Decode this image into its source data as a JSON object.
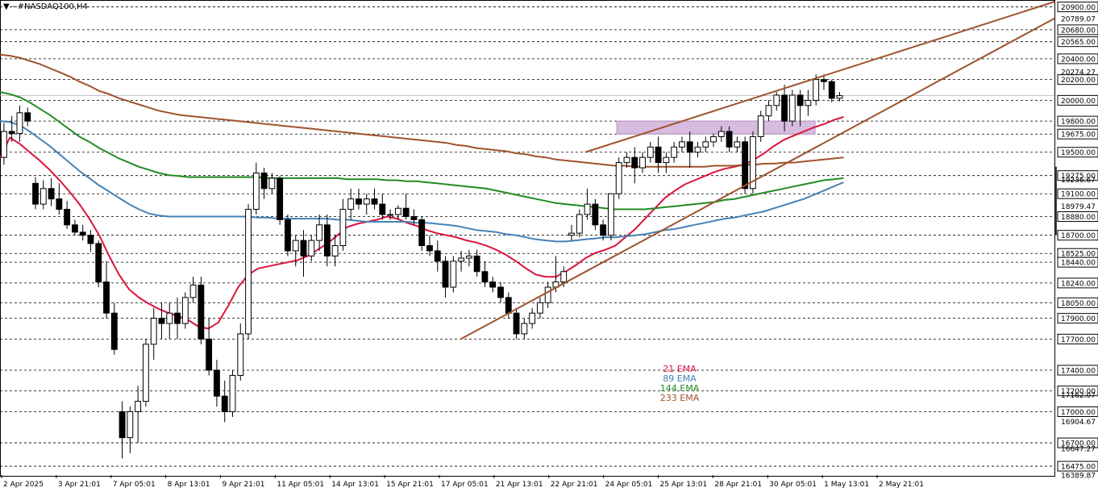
{
  "chart_data": {
    "type": "candlestick",
    "symbol": "▼ - #NASDAQ100,H4",
    "ylim": [
      16389.87,
      20951
    ],
    "level_lines": [
      20900,
      20680,
      20565,
      20400,
      20200,
      20000,
      19800,
      19675,
      19500,
      19275,
      19100,
      18880,
      18700,
      18525,
      18440,
      18240,
      18050,
      17900,
      17700,
      17400,
      17200,
      17000,
      16700,
      16475
    ],
    "price_labels": [
      {
        "label": "20900.00",
        "value": 20900,
        "boxed": true
      },
      {
        "label": "20789.07",
        "value": 20789.07,
        "boxed": false
      },
      {
        "label": "20680.00",
        "value": 20680,
        "boxed": true
      },
      {
        "label": "20565.00",
        "value": 20565,
        "boxed": true
      },
      {
        "label": "20400.00",
        "value": 20400,
        "boxed": true
      },
      {
        "label": "20274.27",
        "value": 20274.27,
        "boxed": false
      },
      {
        "label": "20200.00",
        "value": 20200,
        "boxed": true
      },
      {
        "label": "20000.00",
        "value": 20000,
        "boxed": true
      },
      {
        "label": "19800.00",
        "value": 19800,
        "boxed": true
      },
      {
        "label": "19675.00",
        "value": 19675,
        "boxed": true
      },
      {
        "label": "19500.00",
        "value": 19500,
        "boxed": true
      },
      {
        "label": "19275.00",
        "value": 19275,
        "boxed": true
      },
      {
        "label": "19236.67",
        "value": 19236.67,
        "boxed": false
      },
      {
        "label": "19100.00",
        "value": 19100,
        "boxed": true
      },
      {
        "label": "18979.47",
        "value": 18979.47,
        "boxed": false
      },
      {
        "label": "18880.00",
        "value": 18880,
        "boxed": true
      },
      {
        "label": "18700.00",
        "value": 18700,
        "boxed": true
      },
      {
        "label": "18525.00",
        "value": 18525,
        "boxed": true
      },
      {
        "label": "18440.00",
        "value": 18440,
        "boxed": true
      },
      {
        "label": "18240.00",
        "value": 18240,
        "boxed": true
      },
      {
        "label": "18050.00",
        "value": 18050,
        "boxed": true
      },
      {
        "label": "17900.00",
        "value": 17900,
        "boxed": true
      },
      {
        "label": "17700.00",
        "value": 17700,
        "boxed": true
      },
      {
        "label": "17400.00",
        "value": 17400,
        "boxed": true
      },
      {
        "label": "17200.00",
        "value": 17200,
        "boxed": true
      },
      {
        "label": "17162.07",
        "value": 17162.07,
        "boxed": false
      },
      {
        "label": "17000.00",
        "value": 17000,
        "boxed": true
      },
      {
        "label": "16904.67",
        "value": 16904.67,
        "boxed": false
      },
      {
        "label": "16700.00",
        "value": 16700,
        "boxed": true
      },
      {
        "label": "16647.27",
        "value": 16647.27,
        "boxed": false
      },
      {
        "label": "16475.00",
        "value": 16475,
        "boxed": true
      },
      {
        "label": "16389.87",
        "value": 16389.87,
        "boxed": false
      }
    ],
    "current_price": 20045,
    "x_labels": [
      "2 Apr 2025",
      "3 Apr 21:01",
      "7 Apr 05:01",
      "8 Apr 13:01",
      "9 Apr 21:01",
      "11 Apr 05:01",
      "14 Apr 13:01",
      "15 Apr 21:01",
      "17 Apr 05:01",
      "21 Apr 13:01",
      "22 Apr 21:01",
      "24 Apr 05:01",
      "25 Apr 13:01",
      "28 Apr 21:01",
      "30 Apr 05:01",
      "1 May 13:01",
      "2 May 21:01"
    ],
    "series": [
      {
        "name": "21 EMA",
        "color": "#dc143c",
        "values": [
          19450,
          19640,
          19580,
          19500,
          19420,
          19330,
          19230,
          19120,
          19000,
          18860,
          18700,
          18500,
          18320,
          18180,
          18100,
          18040,
          17990,
          17950,
          17920,
          17880,
          17820,
          17800,
          17860,
          18020,
          18200,
          18320,
          18380,
          18400,
          18420,
          18440,
          18460,
          18500,
          18560,
          18620,
          18700,
          18780,
          18810,
          18830,
          18850,
          18880,
          18860,
          18820,
          18790,
          18750,
          18720,
          18700,
          18680,
          18650,
          18630,
          18600,
          18560,
          18510,
          18450,
          18380,
          18320,
          18300,
          18300,
          18350,
          18410,
          18480,
          18530,
          18560,
          18600,
          18680,
          18760,
          18860,
          18960,
          19060,
          19130,
          19190,
          19230,
          19270,
          19310,
          19340,
          19360,
          19380,
          19430,
          19490,
          19560,
          19620,
          19660,
          19700,
          19740,
          19770,
          19810,
          19840
        ]
      },
      {
        "name": "89 EMA",
        "color": "#4682b4",
        "values": [
          19800,
          19790,
          19760,
          19700,
          19630,
          19560,
          19480,
          19400,
          19320,
          19250,
          19180,
          19120,
          19060,
          19000,
          18950,
          18910,
          18890,
          18880,
          18880,
          18880,
          18880,
          18880,
          18880,
          18880,
          18880,
          18880,
          18870,
          18870,
          18860,
          18860,
          18860,
          18860,
          18860,
          18860,
          18850,
          18850,
          18840,
          18830,
          18830,
          18830,
          18830,
          18830,
          18820,
          18820,
          18810,
          18800,
          18790,
          18770,
          18750,
          18740,
          18730,
          18710,
          18700,
          18680,
          18660,
          18650,
          18640,
          18640,
          18650,
          18660,
          18670,
          18680,
          18680,
          18690,
          18700,
          18710,
          18730,
          18750,
          18760,
          18780,
          18800,
          18820,
          18840,
          18860,
          18870,
          18890,
          18910,
          18930,
          18960,
          18990,
          19020,
          19050,
          19090,
          19130,
          19170,
          19210
        ]
      },
      {
        "name": "144 EMA",
        "color": "#228b22",
        "values": [
          20080,
          20060,
          20030,
          19980,
          19920,
          19860,
          19790,
          19720,
          19650,
          19600,
          19540,
          19490,
          19440,
          19400,
          19360,
          19330,
          19300,
          19280,
          19270,
          19260,
          19260,
          19260,
          19260,
          19260,
          19260,
          19260,
          19260,
          19250,
          19250,
          19250,
          19250,
          19250,
          19250,
          19250,
          19250,
          19240,
          19240,
          19240,
          19240,
          19230,
          19230,
          19220,
          19220,
          19210,
          19200,
          19190,
          19180,
          19170,
          19160,
          19150,
          19130,
          19110,
          19090,
          19070,
          19050,
          19030,
          19010,
          19000,
          18990,
          18980,
          18970,
          18960,
          18950,
          18950,
          18950,
          18950,
          18960,
          18970,
          18980,
          18990,
          19000,
          19010,
          19020,
          19040,
          19050,
          19070,
          19090,
          19110,
          19130,
          19150,
          19170,
          19190,
          19210,
          19230,
          19240,
          19250
        ]
      },
      {
        "name": "233 EMA",
        "color": "#a0522d",
        "values": [
          20440,
          20430,
          20410,
          20380,
          20350,
          20310,
          20270,
          20230,
          20180,
          20140,
          20090,
          20060,
          20020,
          19990,
          19960,
          19930,
          19900,
          19880,
          19860,
          19850,
          19840,
          19830,
          19820,
          19810,
          19800,
          19790,
          19780,
          19770,
          19760,
          19750,
          19740,
          19730,
          19720,
          19710,
          19700,
          19690,
          19680,
          19670,
          19660,
          19650,
          19640,
          19630,
          19620,
          19610,
          19600,
          19590,
          19570,
          19560,
          19540,
          19530,
          19520,
          19510,
          19490,
          19480,
          19460,
          19450,
          19430,
          19420,
          19410,
          19400,
          19390,
          19380,
          19370,
          19370,
          19360,
          19360,
          19360,
          19360,
          19360,
          19360,
          19360,
          19360,
          19370,
          19370,
          19370,
          19380,
          19380,
          19390,
          19390,
          19400,
          19400,
          19410,
          19420,
          19430,
          19440,
          19450
        ]
      }
    ],
    "candles": [
      [
        19450,
        19780,
        19380,
        19700
      ],
      [
        19700,
        19850,
        19600,
        19680
      ],
      [
        19680,
        19950,
        19600,
        19880
      ],
      [
        19880,
        19930,
        19750,
        19800
      ],
      [
        19200,
        19260,
        18950,
        19000
      ],
      [
        19000,
        19230,
        18950,
        19150
      ],
      [
        19150,
        19250,
        18980,
        19050
      ],
      [
        19050,
        19200,
        18900,
        18950
      ],
      [
        18950,
        19030,
        18760,
        18800
      ],
      [
        18800,
        18850,
        18700,
        18730
      ],
      [
        18730,
        18800,
        18650,
        18700
      ],
      [
        18700,
        18750,
        18540,
        18620
      ],
      [
        18620,
        18650,
        18200,
        18250
      ],
      [
        18250,
        18450,
        17900,
        17950
      ],
      [
        17950,
        18050,
        17550,
        17600
      ],
      [
        17000,
        17100,
        16550,
        16750
      ],
      [
        16750,
        17050,
        16600,
        17000
      ],
      [
        17000,
        17250,
        16700,
        17100
      ],
      [
        17100,
        17700,
        17050,
        17650
      ],
      [
        17650,
        18000,
        17500,
        17900
      ],
      [
        17900,
        18050,
        17700,
        17850
      ],
      [
        17850,
        18050,
        17700,
        17950
      ],
      [
        17950,
        18100,
        17700,
        17850
      ],
      [
        17850,
        18150,
        17800,
        18100
      ],
      [
        18100,
        18300,
        18050,
        18220
      ],
      [
        18220,
        18300,
        17650,
        17700
      ],
      [
        17700,
        17900,
        17350,
        17400
      ],
      [
        17400,
        17500,
        17050,
        17150
      ],
      [
        17150,
        17300,
        16900,
        17000
      ],
      [
        17000,
        17400,
        16950,
        17350
      ],
      [
        17350,
        17850,
        17300,
        17750
      ],
      [
        17750,
        19000,
        17700,
        18950
      ],
      [
        18950,
        19400,
        18900,
        19300
      ],
      [
        19300,
        19350,
        19050,
        19150
      ],
      [
        19150,
        19300,
        19100,
        19250
      ],
      [
        19250,
        19270,
        18800,
        18850
      ],
      [
        18850,
        18900,
        18500,
        18550
      ],
      [
        18550,
        18700,
        18400,
        18650
      ],
      [
        18650,
        18750,
        18300,
        18500
      ],
      [
        18500,
        18700,
        18450,
        18650
      ],
      [
        18650,
        18900,
        18550,
        18800
      ],
      [
        18800,
        18900,
        18400,
        18500
      ],
      [
        18500,
        18700,
        18400,
        18600
      ],
      [
        18600,
        19050,
        18550,
        18950
      ],
      [
        18950,
        19150,
        18850,
        19050
      ],
      [
        19050,
        19150,
        18950,
        19000
      ],
      [
        19000,
        19100,
        18900,
        19050
      ],
      [
        19050,
        19150,
        18950,
        19000
      ],
      [
        19000,
        19100,
        18850,
        18900
      ],
      [
        18900,
        18950,
        18850,
        18900
      ],
      [
        18900,
        18990,
        18850,
        18960
      ],
      [
        18960,
        19100,
        18850,
        18880
      ],
      [
        18880,
        18950,
        18800,
        18850
      ],
      [
        18850,
        18880,
        18550,
        18600
      ],
      [
        18600,
        18700,
        18500,
        18550
      ],
      [
        18550,
        18650,
        18350,
        18450
      ],
      [
        18450,
        18500,
        18100,
        18200
      ],
      [
        18200,
        18500,
        18150,
        18450
      ],
      [
        18450,
        18550,
        18350,
        18480
      ],
      [
        18480,
        18560,
        18400,
        18500
      ],
      [
        18500,
        18560,
        18300,
        18350
      ],
      [
        18350,
        18450,
        18200,
        18250
      ],
      [
        18250,
        18300,
        18150,
        18200
      ],
      [
        18200,
        18250,
        18050,
        18100
      ],
      [
        18100,
        18150,
        17900,
        17950
      ],
      [
        17950,
        18000,
        17700,
        17750
      ],
      [
        17750,
        17900,
        17700,
        17850
      ],
      [
        17850,
        18000,
        17800,
        17950
      ],
      [
        17950,
        18100,
        17900,
        18050
      ],
      [
        18050,
        18250,
        18000,
        18200
      ],
      [
        18200,
        18500,
        18150,
        18250
      ],
      [
        18250,
        18400,
        18200,
        18350
      ],
      [
        18700,
        18800,
        18650,
        18720
      ],
      [
        18720,
        18950,
        18680,
        18900
      ],
      [
        18900,
        19150,
        18850,
        19000
      ],
      [
        19000,
        19050,
        18750,
        18800
      ],
      [
        18800,
        18850,
        18650,
        18700
      ],
      [
        18700,
        19100,
        18650,
        19100
      ],
      [
        19100,
        19450,
        19050,
        19400
      ],
      [
        19400,
        19500,
        19350,
        19450
      ],
      [
        19450,
        19550,
        19200,
        19350
      ],
      [
        19350,
        19500,
        19300,
        19450
      ],
      [
        19450,
        19600,
        19400,
        19550
      ],
      [
        19550,
        19650,
        19300,
        19400
      ],
      [
        19400,
        19500,
        19300,
        19450
      ],
      [
        19450,
        19600,
        19400,
        19550
      ],
      [
        19550,
        19650,
        19500,
        19600
      ],
      [
        19600,
        19700,
        19350,
        19500
      ],
      [
        19500,
        19600,
        19450,
        19550
      ],
      [
        19550,
        19650,
        19500,
        19600
      ],
      [
        19600,
        19680,
        19550,
        19650
      ],
      [
        19650,
        19750,
        19600,
        19700
      ],
      [
        19700,
        19750,
        19500,
        19550
      ],
      [
        19550,
        19650,
        19500,
        19600
      ],
      [
        19600,
        19650,
        19100,
        19150
      ],
      [
        19150,
        19700,
        19100,
        19650
      ],
      [
        19650,
        19900,
        19600,
        19850
      ],
      [
        19850,
        20000,
        19800,
        19950
      ],
      [
        19950,
        20080,
        19900,
        20050
      ],
      [
        20050,
        20150,
        19700,
        19800
      ],
      [
        19800,
        20100,
        19750,
        20050
      ],
      [
        20050,
        20100,
        19750,
        19950
      ],
      [
        19950,
        20100,
        19850,
        20000
      ],
      [
        20000,
        20250,
        19950,
        20200
      ],
      [
        20200,
        20250,
        20100,
        20180
      ],
      [
        20180,
        20200,
        19980,
        20020
      ],
      [
        20020,
        20080,
        19990,
        20045
      ]
    ],
    "trend_lines": [
      {
        "name": "channel-upper",
        "points": [
          [
            0.555,
            19500
          ],
          [
            1.0,
            20950
          ]
        ]
      },
      {
        "name": "channel-lower",
        "points": [
          [
            0.437,
            17700
          ],
          [
            1.0,
            20789.07
          ]
        ]
      }
    ],
    "zone": {
      "from_x": 0.585,
      "to_x": 0.773,
      "y_low": 19675,
      "y_high": 19800,
      "color": "#cba6d6"
    },
    "legend": [
      {
        "label": "21 EMA",
        "color": "#dc143c"
      },
      {
        "label": "89 EMA",
        "color": "#4682b4"
      },
      {
        "label": "144 EMA",
        "color": "#228b22"
      },
      {
        "label": "233 EMA",
        "color": "#a0522d"
      }
    ],
    "colors": {
      "bull": "#ffffff",
      "bear": "#000000",
      "grid": "#000000",
      "axis": "#000000",
      "label_box": "#ffffff",
      "trend": "#a0522d"
    }
  }
}
